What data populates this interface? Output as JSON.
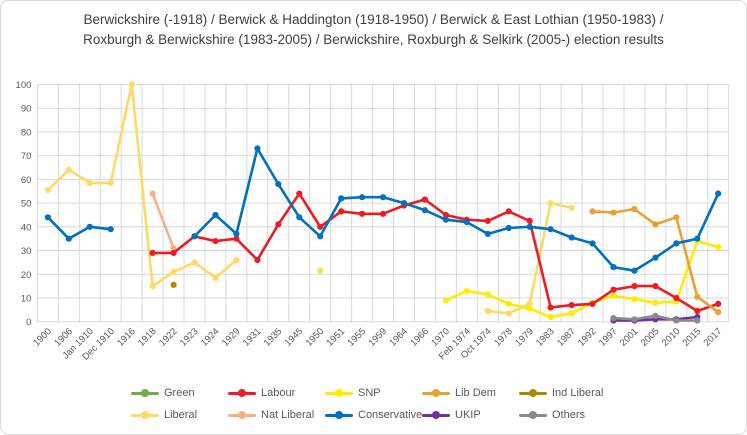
{
  "chart_data": {
    "type": "line",
    "title": "Berwickshire (-1918) / Berwick & Haddington (1918-1950) / Berwick & East Lothian (1950-1983) / Roxburgh & Berwickshire (1983-2005) / Berwickshire, Roxburgh & Selkirk (2005-) election results",
    "xlabel": "",
    "ylabel": "",
    "ylim": [
      0,
      100
    ],
    "y_ticks": [
      "0",
      "10",
      "20",
      "30",
      "40",
      "50",
      "60",
      "70",
      "80",
      "90",
      "100"
    ],
    "grid": true,
    "legend_position": "bottom",
    "categories": [
      "1900",
      "1906",
      "Jan 1910",
      "Dec 1910",
      "1916",
      "1918",
      "1922",
      "1923",
      "1924",
      "1929",
      "1931",
      "1935",
      "1945",
      "1950",
      "1951",
      "1955",
      "1959",
      "1964",
      "1966",
      "1970",
      "Feb 1974",
      "Oct 1974",
      "1978",
      "1979",
      "1983",
      "1987",
      "1992",
      "1997",
      "2001",
      "2005",
      "2010",
      "2015",
      "2017"
    ],
    "series": [
      {
        "name": "Green",
        "color": "#70ad47",
        "values": [
          null,
          null,
          null,
          null,
          null,
          null,
          null,
          null,
          null,
          null,
          null,
          null,
          null,
          null,
          null,
          null,
          null,
          null,
          null,
          null,
          null,
          null,
          null,
          null,
          null,
          null,
          null,
          null,
          null,
          null,
          null,
          null,
          null
        ]
      },
      {
        "name": "Labour",
        "color": "#ed1c24",
        "values": [
          null,
          null,
          null,
          null,
          null,
          29,
          29,
          36,
          34,
          35,
          26,
          41,
          54,
          40,
          46.5,
          45.5,
          45.5,
          49,
          51.5,
          45,
          43,
          42.5,
          46.5,
          42.5,
          6,
          7,
          7.5,
          13.5,
          15,
          15,
          10,
          4.5,
          7.5
        ]
      },
      {
        "name": "SNP",
        "color": "#ffec00",
        "values": [
          null,
          null,
          null,
          null,
          null,
          null,
          null,
          null,
          null,
          null,
          null,
          null,
          null,
          null,
          null,
          null,
          null,
          null,
          null,
          9,
          13,
          11.5,
          7.5,
          5.5,
          2,
          3.5,
          8,
          11,
          9.5,
          8,
          8.5,
          34,
          31.5
        ]
      },
      {
        "name": "Lib Dem",
        "color": "#eaa22f",
        "values": [
          null,
          null,
          null,
          null,
          null,
          null,
          null,
          null,
          null,
          null,
          null,
          null,
          null,
          null,
          null,
          null,
          null,
          null,
          null,
          null,
          null,
          null,
          null,
          null,
          null,
          null,
          46.5,
          46,
          47.5,
          41,
          44,
          10.5,
          4
        ]
      },
      {
        "name": "Ind Liberal",
        "color": "#af8a00",
        "values": [
          null,
          null,
          null,
          null,
          null,
          null,
          15.5,
          null,
          null,
          null,
          null,
          null,
          null,
          null,
          null,
          null,
          null,
          null,
          null,
          null,
          null,
          null,
          null,
          null,
          null,
          null,
          null,
          null,
          null,
          null,
          null,
          null,
          null
        ]
      },
      {
        "name": "Liberal",
        "color": "#ffd966",
        "values": [
          55.5,
          64,
          58.5,
          58.5,
          100,
          15,
          21,
          25,
          18.5,
          26,
          null,
          null,
          null,
          21.5,
          null,
          null,
          null,
          null,
          null,
          null,
          null,
          4.5,
          3.5,
          7.5,
          50,
          48,
          null,
          null,
          null,
          null,
          null,
          null,
          null
        ]
      },
      {
        "name": "Nat Liberal",
        "color": "#f5b183",
        "values": [
          null,
          null,
          null,
          null,
          null,
          54,
          31,
          null,
          null,
          null,
          null,
          null,
          null,
          null,
          null,
          null,
          null,
          null,
          null,
          null,
          null,
          null,
          null,
          null,
          null,
          null,
          null,
          null,
          null,
          null,
          null,
          null,
          null
        ]
      },
      {
        "name": "Conservative",
        "color": "#0070c0",
        "values": [
          44,
          35,
          40,
          39,
          null,
          null,
          null,
          36,
          45,
          37,
          73,
          58,
          44,
          36,
          52,
          52.5,
          52.5,
          50,
          47,
          43,
          42,
          37,
          39.5,
          40,
          39,
          35.5,
          33,
          23,
          21.5,
          27,
          33,
          35,
          54
        ]
      },
      {
        "name": "UKIP",
        "color": "#7030a0",
        "values": [
          null,
          null,
          null,
          null,
          null,
          null,
          null,
          null,
          null,
          null,
          null,
          null,
          null,
          null,
          null,
          null,
          null,
          null,
          null,
          null,
          null,
          null,
          null,
          null,
          null,
          null,
          null,
          0.5,
          0.5,
          1,
          1,
          2,
          null
        ]
      },
      {
        "name": "Others",
        "color": "#8a8a8a",
        "values": [
          null,
          null,
          null,
          null,
          null,
          null,
          null,
          null,
          null,
          null,
          null,
          null,
          null,
          null,
          null,
          null,
          null,
          null,
          null,
          null,
          null,
          null,
          null,
          null,
          null,
          null,
          null,
          1.5,
          1,
          2.5,
          0.5,
          0.5,
          null
        ]
      }
    ],
    "draw_order": [
      "Green",
      "Liberal",
      "Nat Liberal",
      "Ind Liberal",
      "SNP",
      "Labour",
      "Lib Dem",
      "Conservative",
      "UKIP",
      "Others"
    ],
    "legend_rows": [
      [
        "Green",
        "Labour",
        "SNP",
        "Lib Dem",
        "Ind Liberal"
      ],
      [
        "Liberal",
        "Nat Liberal",
        "Conservative",
        "UKIP",
        "Others"
      ]
    ],
    "colors": {
      "grid": "#d9d9d9",
      "axis_text": "#595959",
      "title_text": "#404040"
    }
  }
}
